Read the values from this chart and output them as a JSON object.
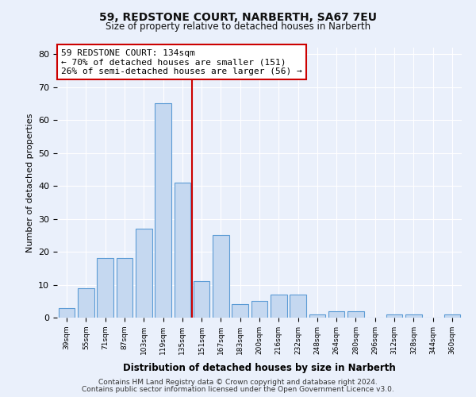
{
  "title1": "59, REDSTONE COURT, NARBERTH, SA67 7EU",
  "title2": "Size of property relative to detached houses in Narberth",
  "xlabel": "Distribution of detached houses by size in Narberth",
  "ylabel": "Number of detached properties",
  "categories": [
    "39sqm",
    "55sqm",
    "71sqm",
    "87sqm",
    "103sqm",
    "119sqm",
    "135sqm",
    "151sqm",
    "167sqm",
    "183sqm",
    "200sqm",
    "216sqm",
    "232sqm",
    "248sqm",
    "264sqm",
    "280sqm",
    "296sqm",
    "312sqm",
    "328sqm",
    "344sqm",
    "360sqm"
  ],
  "values": [
    3,
    9,
    18,
    18,
    27,
    65,
    41,
    11,
    25,
    4,
    5,
    7,
    7,
    1,
    2,
    2,
    0,
    1,
    1,
    0,
    1
  ],
  "bar_color": "#c5d8f0",
  "bar_edge_color": "#5b9bd5",
  "vline_x_index": 6,
  "vline_color": "#cc0000",
  "annotation_line1": "59 REDSTONE COURT: 134sqm",
  "annotation_line2": "← 70% of detached houses are smaller (151)",
  "annotation_line3": "26% of semi-detached houses are larger (56) →",
  "annotation_box_color": "#ffffff",
  "annotation_box_edge": "#cc0000",
  "ylim": [
    0,
    82
  ],
  "yticks": [
    0,
    10,
    20,
    30,
    40,
    50,
    60,
    70,
    80
  ],
  "bg_color": "#eaf0fb",
  "grid_color": "#ffffff",
  "footer1": "Contains HM Land Registry data © Crown copyright and database right 2024.",
  "footer2": "Contains public sector information licensed under the Open Government Licence v3.0."
}
